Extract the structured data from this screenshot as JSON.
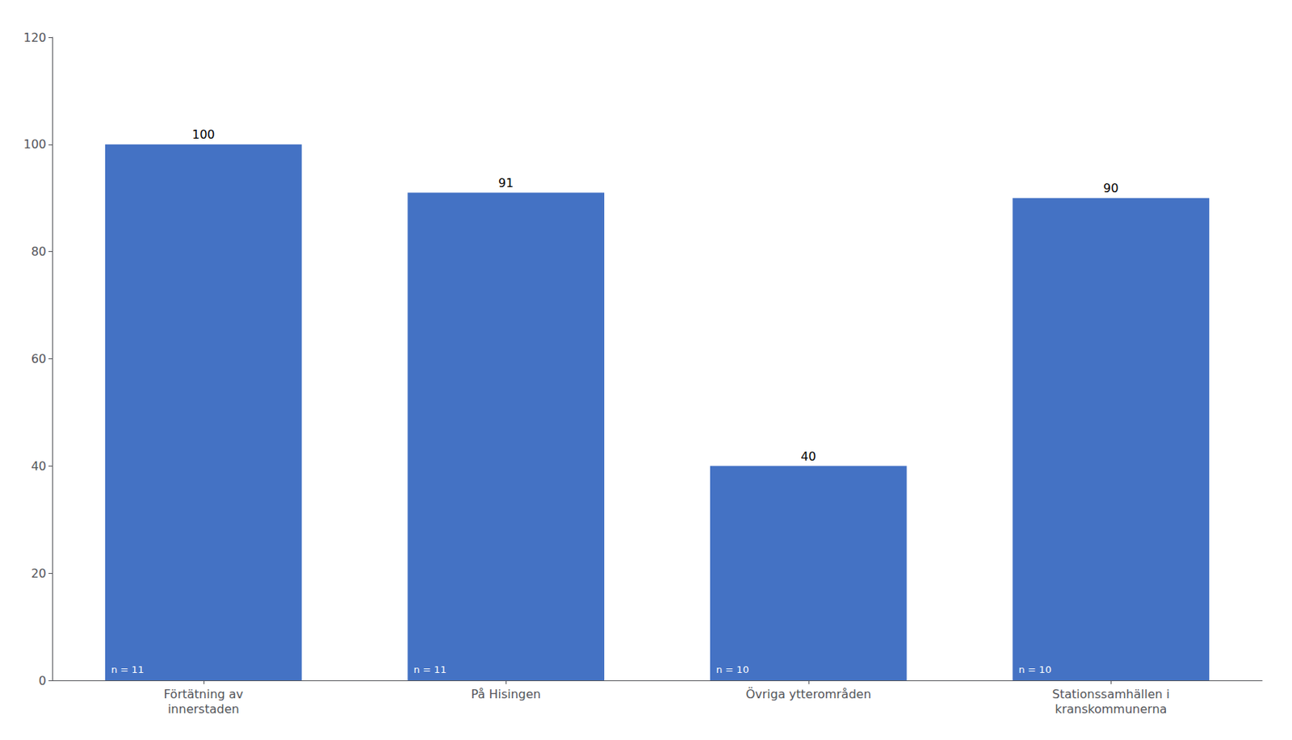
{
  "chart_data": {
    "type": "bar",
    "categories": [
      "Förtätning av\ninnerstaden",
      "På Hisingen",
      "Övriga ytterområden",
      "Stationssamhällen i\nkranskommunerna"
    ],
    "values": [
      100,
      91,
      40,
      90
    ],
    "annotations": [
      "n = 11",
      "n = 11",
      "n = 10",
      "n = 10"
    ],
    "color": "#4472C4",
    "ylim": [
      0,
      120
    ],
    "yticks": [
      0,
      20,
      40,
      60,
      80,
      100,
      120
    ],
    "grid": false,
    "data_labels": true
  }
}
